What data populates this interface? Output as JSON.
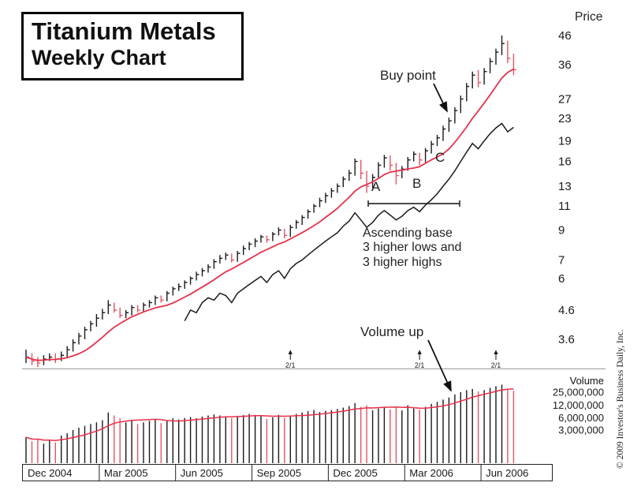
{
  "title": {
    "line1": "Titanium Metals",
    "line2": "Weekly Chart"
  },
  "price_axis": {
    "title": "Price",
    "ticks": [
      {
        "v": 46,
        "label": "46"
      },
      {
        "v": 36,
        "label": "36"
      },
      {
        "v": 27,
        "label": "27"
      },
      {
        "v": 23,
        "label": "23"
      },
      {
        "v": 19,
        "label": "19"
      },
      {
        "v": 16,
        "label": "16"
      },
      {
        "v": 13,
        "label": "13"
      },
      {
        "v": 11,
        "label": "11"
      },
      {
        "v": 9,
        "label": "9"
      },
      {
        "v": 7,
        "label": "7"
      },
      {
        "v": 6,
        "label": "6"
      },
      {
        "v": 4.6,
        "label": "4.6"
      },
      {
        "v": 3.6,
        "label": "3.6"
      }
    ]
  },
  "volume_axis": {
    "title": "Volume",
    "ticks": [
      {
        "v": 25,
        "label": "25,000,000"
      },
      {
        "v": 12,
        "label": "12,000,000"
      },
      {
        "v": 6,
        "label": "6,000,000"
      },
      {
        "v": 3,
        "label": "3,000,000"
      }
    ]
  },
  "x_axis": {
    "labels": [
      {
        "week": 0,
        "text": "Dec 2004"
      },
      {
        "week": 13,
        "text": "Mar 2005"
      },
      {
        "week": 26,
        "text": "Jun 2005"
      },
      {
        "week": 39,
        "text": "Sep 2005"
      },
      {
        "week": 52,
        "text": "Dec 2005"
      },
      {
        "week": 65,
        "text": "Mar 2006"
      },
      {
        "week": 78,
        "text": "Jun 2006"
      }
    ]
  },
  "annotations": {
    "buy_point": "Buy point",
    "base_labels": [
      "A",
      "B",
      "C"
    ],
    "ascending_base": "Ascending base\n3 higher lows and\n3 higher highs",
    "volume_up": "Volume up",
    "splits": [
      {
        "week": 45,
        "label": "2/1"
      },
      {
        "week": 67,
        "label": "2/1"
      },
      {
        "week": 80,
        "label": "2/1"
      }
    ]
  },
  "copyright": "© 2009 Investor's Business Daily, Inc.",
  "colors": {
    "up_bar": "#1a1a1a",
    "down_bar": "#e25563",
    "ma_line": "#e8304a",
    "rs_line": "#1a1a1a"
  },
  "chart_data": {
    "type": "bar",
    "subtype": "weekly high-low-close price bars with volume panel",
    "title": "Titanium Metals Weekly Chart",
    "ylabel": "Price",
    "y2label": "Volume",
    "price_scale": "log",
    "volume_scale": "log",
    "x_range": [
      "Dec 2004",
      "Jun 2006"
    ],
    "price_tick_values": [
      46,
      36,
      27,
      23,
      19,
      16,
      13,
      11,
      9,
      7,
      6,
      4.6,
      3.6
    ],
    "volume_tick_values": [
      25000000,
      12000000,
      6000000,
      3000000
    ],
    "volume_unit": "millions of shares",
    "weeks_format": [
      "high",
      "low",
      "close",
      "volume_millions",
      "down_week"
    ],
    "weeks": [
      [
        3.3,
        2.95,
        3.1,
        2.0,
        0
      ],
      [
        3.2,
        2.9,
        3.0,
        1.6,
        1
      ],
      [
        3.1,
        2.85,
        2.95,
        1.8,
        1
      ],
      [
        3.15,
        2.9,
        3.05,
        1.4,
        0
      ],
      [
        3.2,
        3.0,
        3.1,
        1.7,
        0
      ],
      [
        3.2,
        2.95,
        3.05,
        1.5,
        1
      ],
      [
        3.25,
        3.0,
        3.15,
        2.2,
        0
      ],
      [
        3.4,
        3.1,
        3.3,
        2.5,
        0
      ],
      [
        3.6,
        3.25,
        3.5,
        3.0,
        0
      ],
      [
        3.8,
        3.45,
        3.7,
        3.4,
        0
      ],
      [
        4.0,
        3.6,
        3.9,
        3.8,
        0
      ],
      [
        4.2,
        3.85,
        4.1,
        4.2,
        0
      ],
      [
        4.45,
        4.0,
        4.3,
        4.6,
        0
      ],
      [
        4.65,
        4.25,
        4.5,
        5.2,
        0
      ],
      [
        5.0,
        4.45,
        4.8,
        8.0,
        0
      ],
      [
        4.9,
        4.5,
        4.6,
        6.8,
        1
      ],
      [
        4.7,
        4.3,
        4.4,
        5.8,
        1
      ],
      [
        4.6,
        4.3,
        4.5,
        4.6,
        0
      ],
      [
        4.8,
        4.4,
        4.7,
        5.0,
        0
      ],
      [
        4.8,
        4.5,
        4.6,
        4.2,
        1
      ],
      [
        4.9,
        4.55,
        4.8,
        4.6,
        0
      ],
      [
        5.0,
        4.7,
        4.9,
        5.0,
        0
      ],
      [
        5.2,
        4.8,
        5.1,
        5.4,
        0
      ],
      [
        5.2,
        4.9,
        5.0,
        4.4,
        1
      ],
      [
        5.4,
        4.95,
        5.3,
        5.2,
        0
      ],
      [
        5.6,
        5.2,
        5.5,
        5.8,
        0
      ],
      [
        5.75,
        5.4,
        5.6,
        5.4,
        0
      ],
      [
        5.9,
        5.5,
        5.8,
        5.9,
        0
      ],
      [
        6.1,
        5.7,
        6.0,
        6.2,
        0
      ],
      [
        6.35,
        5.9,
        6.2,
        5.8,
        0
      ],
      [
        6.55,
        6.1,
        6.4,
        6.4,
        0
      ],
      [
        6.75,
        6.3,
        6.6,
        6.8,
        0
      ],
      [
        7.05,
        6.5,
        6.9,
        7.2,
        0
      ],
      [
        7.3,
        6.8,
        7.1,
        6.8,
        0
      ],
      [
        7.45,
        7.0,
        7.3,
        6.4,
        0
      ],
      [
        7.4,
        6.85,
        7.0,
        5.9,
        1
      ],
      [
        7.55,
        6.9,
        7.4,
        6.3,
        0
      ],
      [
        7.9,
        7.3,
        7.7,
        6.9,
        0
      ],
      [
        8.15,
        7.6,
        8.0,
        7.4,
        0
      ],
      [
        8.4,
        7.8,
        8.2,
        7.0,
        0
      ],
      [
        8.65,
        8.1,
        8.5,
        6.6,
        0
      ],
      [
        8.6,
        8.1,
        8.3,
        5.6,
        1
      ],
      [
        8.85,
        8.2,
        8.7,
        6.1,
        0
      ],
      [
        9.2,
        8.6,
        9.0,
        7.0,
        0
      ],
      [
        9.1,
        8.4,
        8.6,
        6.0,
        1
      ],
      [
        9.4,
        8.5,
        9.2,
        6.6,
        0
      ],
      [
        9.8,
        9.1,
        9.6,
        7.4,
        0
      ],
      [
        10.2,
        9.4,
        10.0,
        8.0,
        0
      ],
      [
        10.7,
        9.9,
        10.5,
        8.6,
        0
      ],
      [
        11.2,
        10.4,
        11.0,
        9.2,
        0
      ],
      [
        11.8,
        10.9,
        11.5,
        8.2,
        0
      ],
      [
        12.3,
        11.3,
        12.0,
        8.8,
        0
      ],
      [
        12.8,
        11.8,
        12.5,
        9.2,
        0
      ],
      [
        13.3,
        12.3,
        13.0,
        9.8,
        0
      ],
      [
        14.1,
        12.9,
        13.8,
        10.5,
        0
      ],
      [
        14.9,
        13.6,
        14.5,
        11.5,
        0
      ],
      [
        16.4,
        14.2,
        16.0,
        13.5,
        0
      ],
      [
        16.2,
        13.8,
        14.5,
        11.0,
        1
      ],
      [
        14.8,
        12.3,
        13.0,
        12.0,
        1
      ],
      [
        14.4,
        12.8,
        14.0,
        9.0,
        0
      ],
      [
        15.9,
        13.8,
        15.5,
        10.0,
        0
      ],
      [
        16.9,
        15.2,
        16.5,
        11.0,
        0
      ],
      [
        16.8,
        14.8,
        15.5,
        9.5,
        1
      ],
      [
        15.8,
        13.2,
        14.2,
        10.5,
        1
      ],
      [
        15.4,
        13.9,
        15.0,
        9.0,
        0
      ],
      [
        16.6,
        14.8,
        16.2,
        12.0,
        0
      ],
      [
        17.4,
        16.0,
        17.0,
        10.0,
        0
      ],
      [
        17.2,
        15.5,
        16.2,
        9.5,
        1
      ],
      [
        17.9,
        15.9,
        17.5,
        11.0,
        0
      ],
      [
        19.0,
        17.1,
        18.5,
        13.0,
        0
      ],
      [
        20.0,
        18.2,
        19.5,
        14.5,
        0
      ],
      [
        21.6,
        19.0,
        21.0,
        16.5,
        0
      ],
      [
        23.1,
        20.5,
        22.5,
        18.5,
        0
      ],
      [
        25.2,
        22.0,
        24.5,
        22.0,
        0
      ],
      [
        27.8,
        24.0,
        27.0,
        25.0,
        0
      ],
      [
        30.9,
        26.5,
        30.0,
        28.0,
        0
      ],
      [
        34.0,
        29.5,
        33.0,
        30.0,
        0
      ],
      [
        34.5,
        29.8,
        31.0,
        26.0,
        1
      ],
      [
        35.0,
        30.5,
        34.0,
        28.0,
        0
      ],
      [
        38.1,
        33.5,
        37.0,
        32.0,
        0
      ],
      [
        41.2,
        36.0,
        40.0,
        35.0,
        0
      ],
      [
        46.0,
        39.0,
        43.0,
        38.0,
        0
      ],
      [
        44.0,
        36.5,
        38.0,
        30.0,
        1
      ],
      [
        39.5,
        33.0,
        34.5,
        27.0,
        1
      ]
    ],
    "ma_period_weeks": 10,
    "rs_line": {
      "start_week": 27,
      "values": [
        4.2,
        4.6,
        4.5,
        4.9,
        5.1,
        5.0,
        5.3,
        5.2,
        4.9,
        5.3,
        5.5,
        5.7,
        5.9,
        6.1,
        5.8,
        6.2,
        6.4,
        6.0,
        6.5,
        6.8,
        7.0,
        7.3,
        7.6,
        7.9,
        8.2,
        8.5,
        8.8,
        9.3,
        9.7,
        10.4,
        9.8,
        9.2,
        9.6,
        10.2,
        10.6,
        10.2,
        9.8,
        10.1,
        10.6,
        10.9,
        10.5,
        11.1,
        11.6,
        12.2,
        13.0,
        13.8,
        14.8,
        16.0,
        17.3,
        18.6,
        17.8,
        19.0,
        20.2,
        21.2,
        22.0,
        20.5,
        21.3
      ]
    }
  }
}
